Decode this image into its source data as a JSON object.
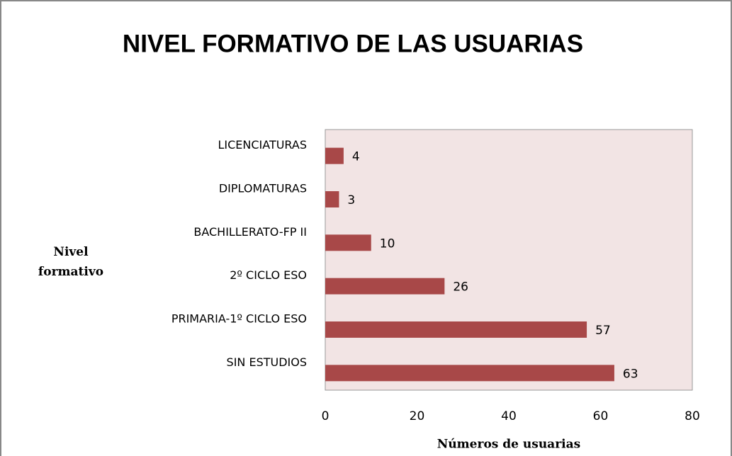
{
  "chart_data": {
    "type": "barh",
    "title": "NIVEL FORMATIVO DE LAS USUARIAS",
    "categories": [
      "LICENCIATURAS",
      "DIPLOMATURAS",
      "BACHILLERATO-FP II",
      "2º CICLO ESO",
      "PRIMARIA-1º CICLO ESO",
      "SIN ESTUDIOS"
    ],
    "values": [
      4,
      3,
      10,
      26,
      57,
      63
    ],
    "color": "#a84848",
    "xlim": [
      0,
      80
    ],
    "xticks": [
      0,
      20,
      40,
      60,
      80
    ],
    "x_label": "Números de usuarias",
    "y_label": "Nivel formativo",
    "grid": false
  }
}
